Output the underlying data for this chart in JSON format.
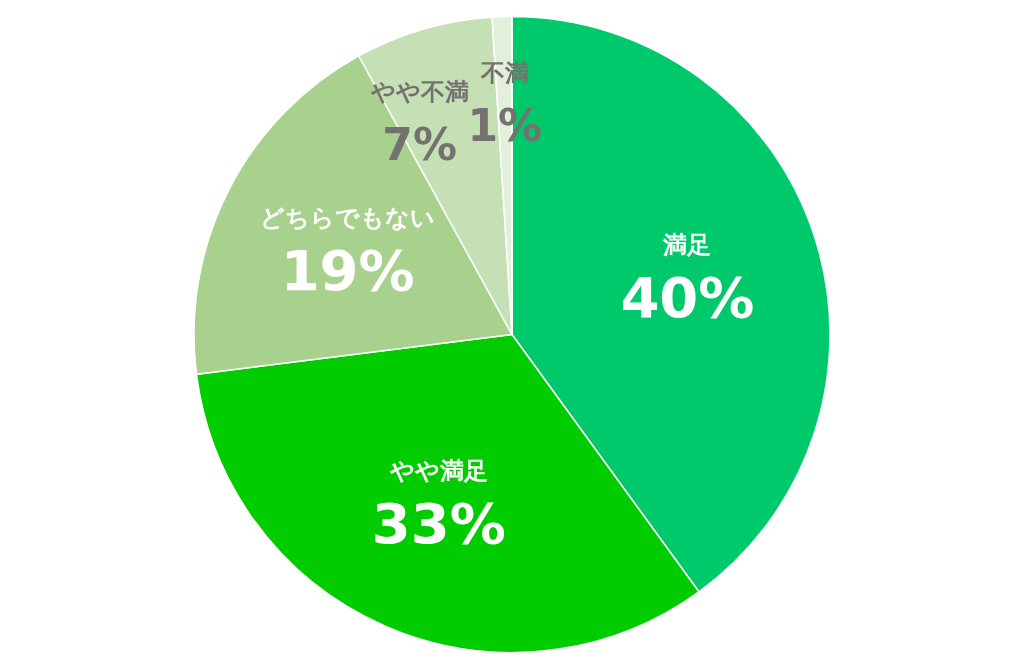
{
  "chart_data": {
    "type": "pie",
    "categories": [
      "満足",
      "やや満足",
      "どちらでもない",
      "やや不満",
      "不満"
    ],
    "values": [
      40,
      33,
      19,
      7,
      1
    ],
    "value_labels": [
      "40%",
      "33%",
      "19%",
      "7%",
      "1%"
    ],
    "colors": [
      "#00c96b",
      "#00cc00",
      "#a9d18e",
      "#c5e0b4",
      "#e2efda"
    ],
    "legend": false
  }
}
